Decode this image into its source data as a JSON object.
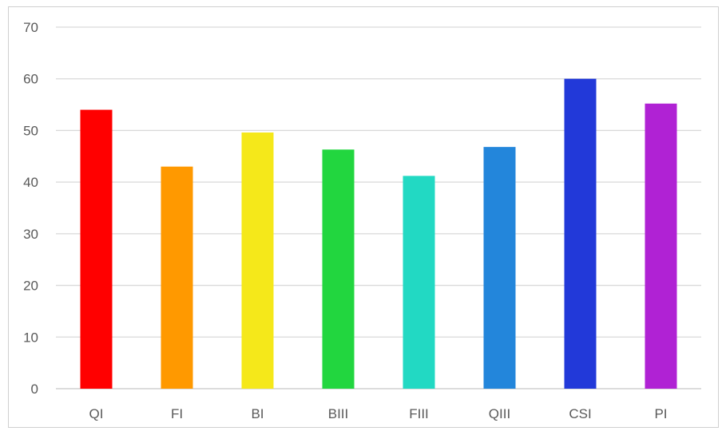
{
  "chart_data": {
    "type": "bar",
    "title": "",
    "xlabel": "",
    "ylabel": "",
    "categories": [
      "QI",
      "FI",
      "BI",
      "BIII",
      "FIII",
      "QIII",
      "CSI",
      "PI"
    ],
    "values": [
      54,
      43,
      49.6,
      46.3,
      41.2,
      46.8,
      60,
      55.2
    ],
    "colors": [
      "#ff0000",
      "#ff9900",
      "#f5e81a",
      "#22d63f",
      "#22d9c3",
      "#2386db",
      "#2239d9",
      "#b022d4"
    ],
    "ylim": [
      0,
      70
    ],
    "yticks": [
      0,
      10,
      20,
      30,
      40,
      50,
      60,
      70
    ],
    "grid": true,
    "legend": "none"
  }
}
